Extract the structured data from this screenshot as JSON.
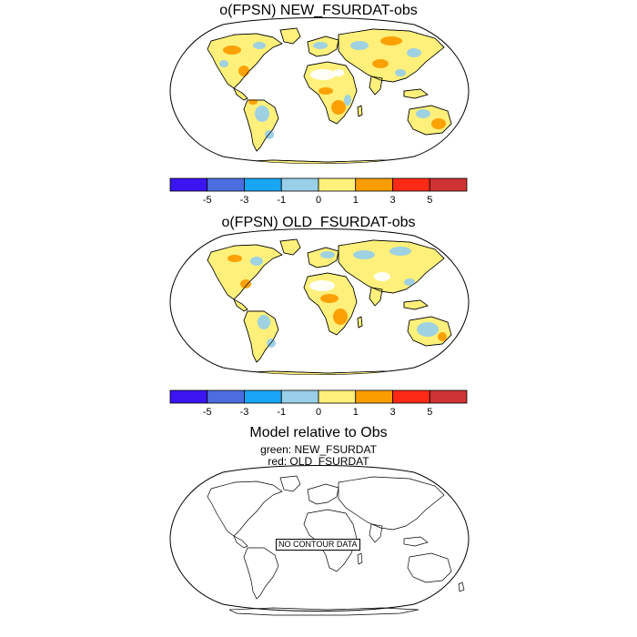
{
  "panels": [
    {
      "title": "o(FPSN) NEW_FSURDAT-obs"
    },
    {
      "title": "o(FPSN) OLD_FSURDAT-obs"
    },
    {
      "title": "Model relative to Obs",
      "legend_lines": [
        "green: NEW_FSURDAT",
        "red: OLD_FSURDAT"
      ],
      "no_data_text": "NO CONTOUR DATA"
    }
  ],
  "colorbar": {
    "labels": [
      "-5",
      "-3",
      "-1",
      "0",
      "1",
      "3",
      "5"
    ],
    "colors": [
      "#3b14f2",
      "#4b6de0",
      "#19a5f5",
      "#99cfe8",
      "#fef07a",
      "#fb9c00",
      "#fb2a16",
      "#cf3333"
    ]
  },
  "map_colors": {
    "land_base": "#fef07a",
    "positive": "#fb9c00",
    "negative": "#99cfe8",
    "missing": "#ffffff",
    "coast": "#000000"
  }
}
